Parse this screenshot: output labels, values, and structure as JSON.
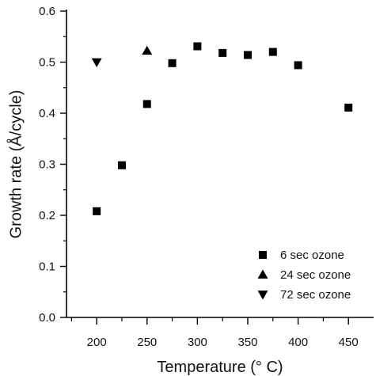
{
  "chart_data": {
    "type": "scatter",
    "xlabel": "Temperature (° C)",
    "ylabel": "Growth rate (Å/cycle)",
    "xlim": [
      170,
      475
    ],
    "ylim": [
      0.0,
      0.6
    ],
    "x_ticks": [
      200,
      250,
      300,
      350,
      400,
      450
    ],
    "y_ticks": [
      0.0,
      0.1,
      0.2,
      0.3,
      0.4,
      0.5,
      0.6
    ],
    "y_tick_labels": [
      "0.0",
      "0.1",
      "0.2",
      "0.3",
      "0.4",
      "0.5",
      "0.6"
    ],
    "grid": false,
    "legend_position": "bottom-right",
    "series": [
      {
        "name": "6 sec ozone",
        "marker": "square",
        "points": [
          {
            "x": 200,
            "y": 0.208
          },
          {
            "x": 225,
            "y": 0.298
          },
          {
            "x": 250,
            "y": 0.418
          },
          {
            "x": 275,
            "y": 0.498
          },
          {
            "x": 300,
            "y": 0.531
          },
          {
            "x": 325,
            "y": 0.518
          },
          {
            "x": 350,
            "y": 0.514
          },
          {
            "x": 375,
            "y": 0.52
          },
          {
            "x": 400,
            "y": 0.494
          },
          {
            "x": 450,
            "y": 0.411
          }
        ]
      },
      {
        "name": "24 sec ozone",
        "marker": "triangle-up",
        "points": [
          {
            "x": 250,
            "y": 0.522
          }
        ]
      },
      {
        "name": "72 sec ozone",
        "marker": "triangle-down",
        "points": [
          {
            "x": 200,
            "y": 0.5
          }
        ]
      }
    ]
  }
}
